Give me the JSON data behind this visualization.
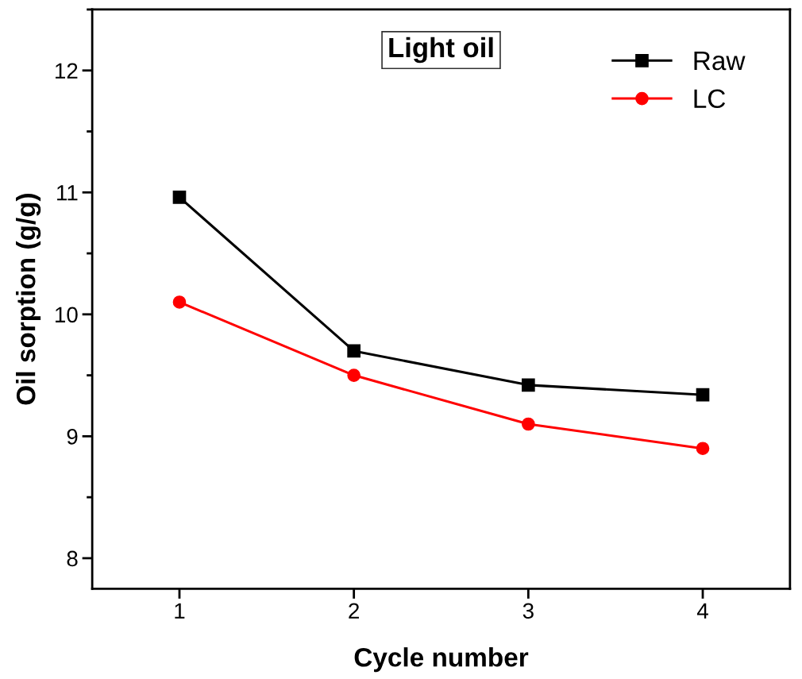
{
  "chart_data": {
    "type": "line",
    "title": "Light oil",
    "xlabel": "Cycle number",
    "ylabel": "Oil sorption (g/g)",
    "x": [
      1,
      2,
      3,
      4
    ],
    "series": [
      {
        "name": "Raw",
        "color": "#000000",
        "marker": "square",
        "values": [
          10.96,
          9.7,
          9.42,
          9.34
        ]
      },
      {
        "name": "LC",
        "color": "#ff0000",
        "marker": "circle",
        "values": [
          10.1,
          9.5,
          9.1,
          8.9
        ]
      }
    ],
    "xlim": [
      0.5,
      4.5
    ],
    "xticks": [
      1,
      2,
      3,
      4
    ],
    "ylim": [
      7.75,
      12.5
    ],
    "yticks": [
      8,
      9,
      10,
      11,
      12
    ],
    "grid": false,
    "legend": "top right",
    "line_style": "solid"
  }
}
